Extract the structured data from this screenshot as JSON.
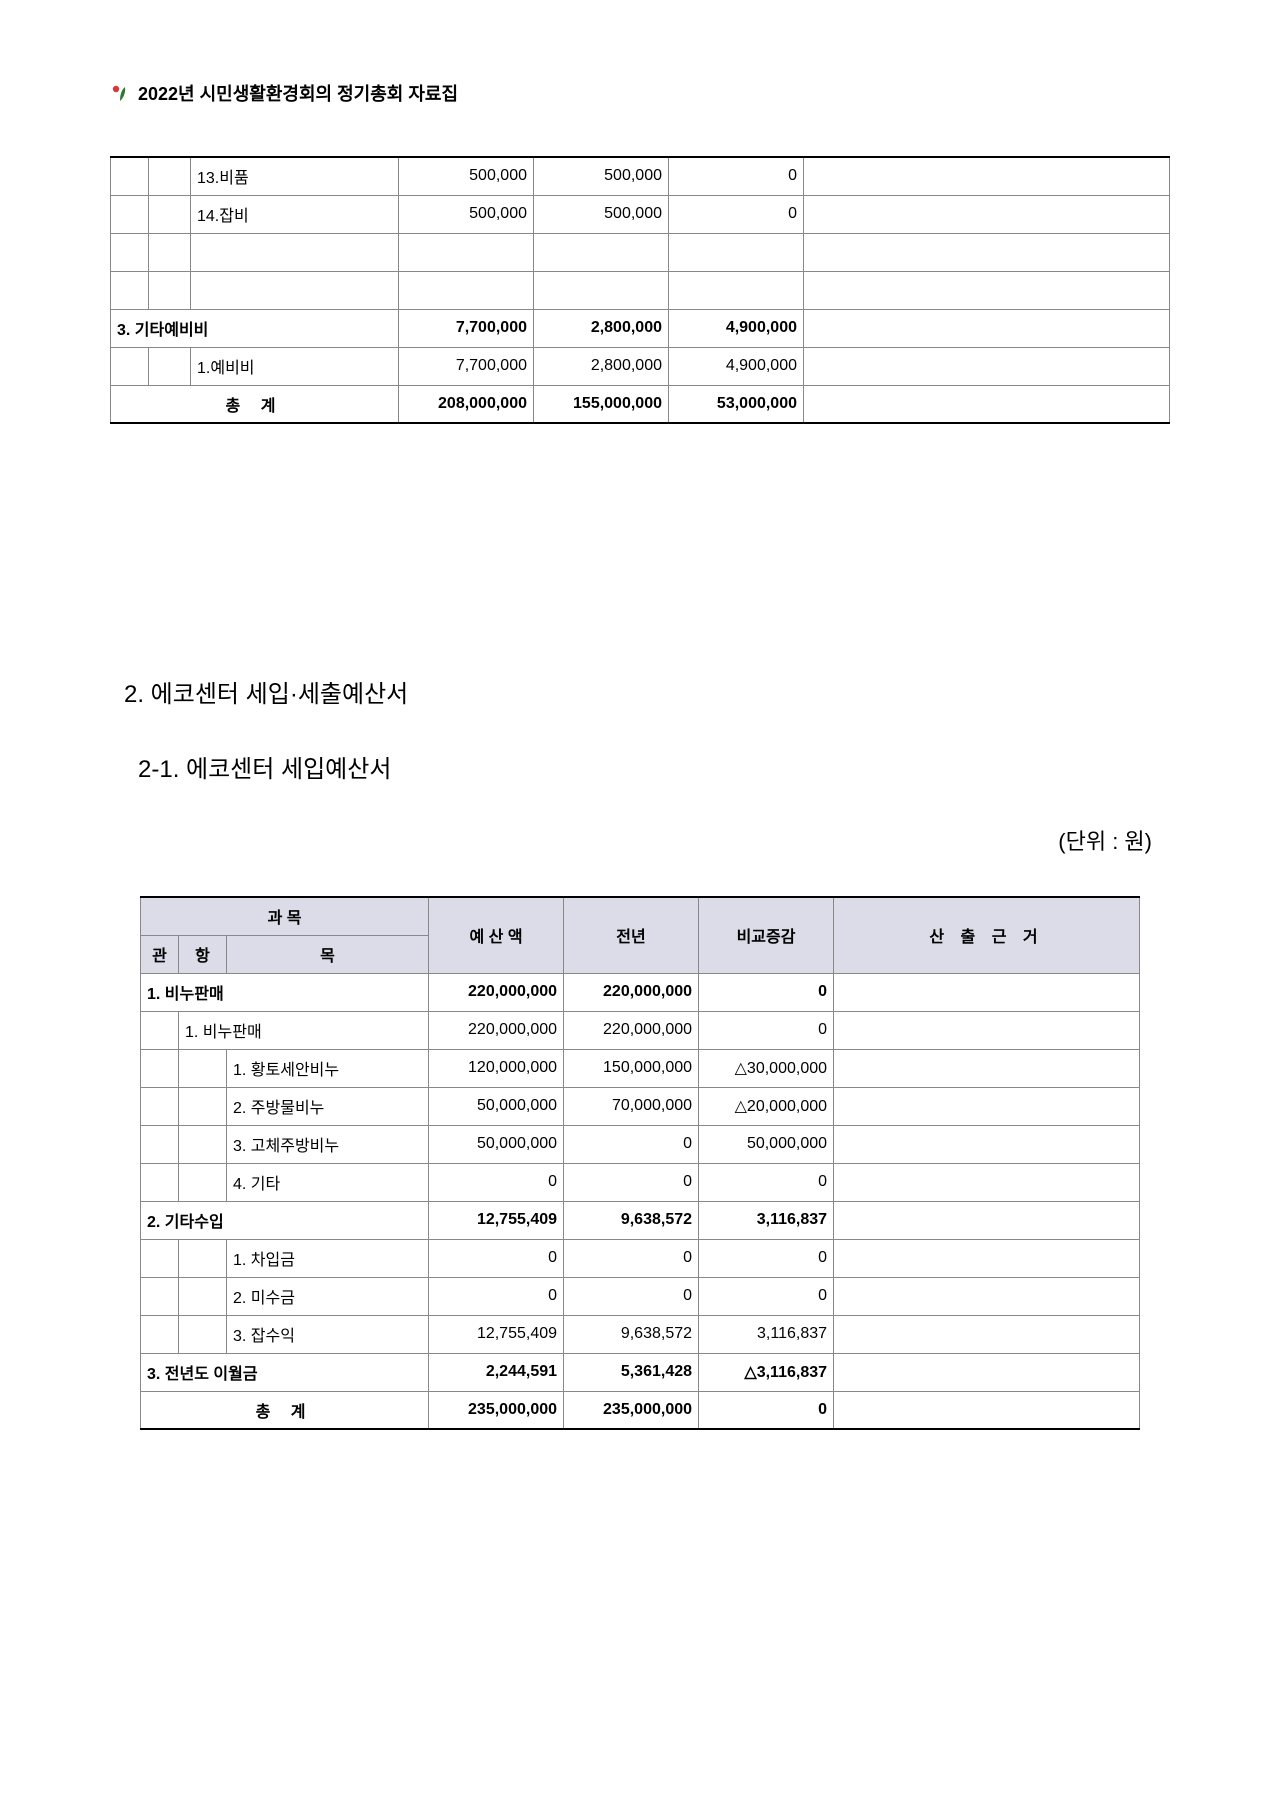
{
  "header": {
    "title": "2022년  시민생활환경회의  정기총회  자료집",
    "logo_colors": {
      "stem": "#2a7a2a",
      "dot_left": "#d43a3a",
      "leaf_right": "#2a7a2a"
    }
  },
  "table1": {
    "rows": [
      {
        "type": "item",
        "label": "13.비품",
        "budget": "500,000",
        "prev": "500,000",
        "diff": "0",
        "basis": ""
      },
      {
        "type": "item",
        "label": "14.잡비",
        "budget": "500,000",
        "prev": "500,000",
        "diff": "0",
        "basis": ""
      },
      {
        "type": "blank",
        "label": "",
        "budget": "",
        "prev": "",
        "diff": "",
        "basis": ""
      },
      {
        "type": "blank",
        "label": "",
        "budget": "",
        "prev": "",
        "diff": "",
        "basis": ""
      },
      {
        "type": "section",
        "label": "3. 기타예비비",
        "budget": "7,700,000",
        "prev": "2,800,000",
        "diff": "4,900,000",
        "basis": ""
      },
      {
        "type": "item",
        "label": "1.예비비",
        "budget": "7,700,000",
        "prev": "2,800,000",
        "diff": "4,900,000",
        "basis": ""
      },
      {
        "type": "total",
        "label": "총  계",
        "budget": "208,000,000",
        "prev": "155,000,000",
        "diff": "53,000,000",
        "basis": ""
      }
    ]
  },
  "section2": {
    "title": "2.  에코센터  세입·세출예산서",
    "subtitle": "2-1.  에코센터  세입예산서",
    "unit": "(단위  :  원)"
  },
  "table2": {
    "headers": {
      "group": "과            목",
      "gwan": "관",
      "hang": "항",
      "mok": "목",
      "budget": "예 산 액",
      "prev": "전년",
      "diff": "비교증감",
      "basis": "산 출 근 거"
    },
    "rows": [
      {
        "type": "section",
        "span": 3,
        "label": "1. 비누판매",
        "budget": "220,000,000",
        "prev": "220,000,000",
        "diff": "0",
        "basis": ""
      },
      {
        "type": "hang",
        "span": 2,
        "label": "1. 비누판매",
        "budget": "220,000,000",
        "prev": "220,000,000",
        "diff": "0",
        "basis": ""
      },
      {
        "type": "item",
        "span": 1,
        "label": "1.  황토세안비누",
        "budget": "120,000,000",
        "prev": "150,000,000",
        "diff": "△30,000,000",
        "basis": ""
      },
      {
        "type": "item",
        "span": 1,
        "label": "2.  주방물비누",
        "budget": "50,000,000",
        "prev": "70,000,000",
        "diff": "△20,000,000",
        "basis": ""
      },
      {
        "type": "item",
        "span": 1,
        "label": "3.  고체주방비누",
        "budget": "50,000,000",
        "prev": "0",
        "diff": "50,000,000",
        "basis": ""
      },
      {
        "type": "item",
        "span": 1,
        "label": "4.  기타",
        "budget": "0",
        "prev": "0",
        "diff": "0",
        "basis": ""
      },
      {
        "type": "section",
        "span": 3,
        "label": "2. 기타수입",
        "budget": "12,755,409",
        "prev": "9,638,572",
        "diff": "3,116,837",
        "basis": ""
      },
      {
        "type": "item",
        "span": 1,
        "label": "1.  차입금",
        "budget": "0",
        "prev": "0",
        "diff": "0",
        "basis": ""
      },
      {
        "type": "item",
        "span": 1,
        "label": "2.  미수금",
        "budget": "0",
        "prev": "0",
        "diff": "0",
        "basis": ""
      },
      {
        "type": "item",
        "span": 1,
        "label": "3.  잡수익",
        "budget": "12,755,409",
        "prev": "9,638,572",
        "diff": "3,116,837",
        "basis": ""
      },
      {
        "type": "section",
        "span": 3,
        "label": "3. 전년도 이월금",
        "budget": "2,244,591",
        "prev": "5,361,428",
        "diff": "△3,116,837",
        "basis": ""
      },
      {
        "type": "total",
        "span": 3,
        "label": "총  계",
        "budget": "235,000,000",
        "prev": "235,000,000",
        "diff": "0",
        "basis": ""
      }
    ]
  }
}
